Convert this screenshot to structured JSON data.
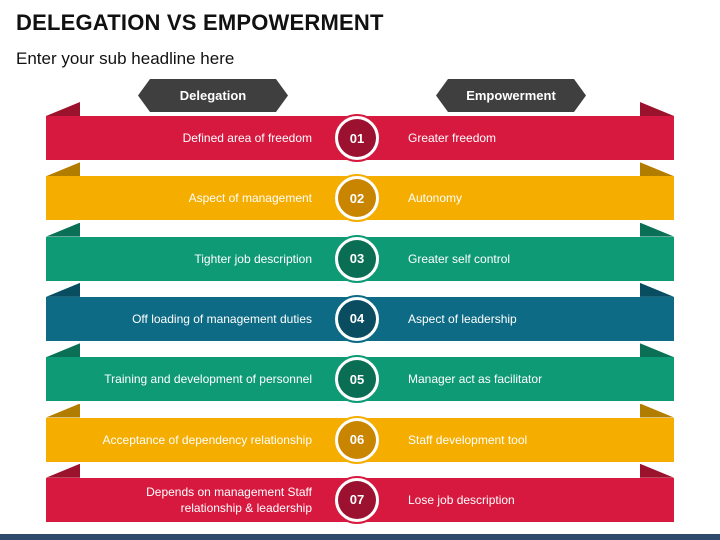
{
  "header": {
    "title": "DELEGATION VS EMPOWERMENT",
    "subtitle": "Enter your sub headline here"
  },
  "columns": {
    "left_label": "Delegation",
    "right_label": "Empowerment"
  },
  "rows": [
    {
      "number": "01",
      "delegation": "Defined area of freedom",
      "empowerment": "Greater freedom",
      "color": "#d7193f",
      "dark": "#9c1030"
    },
    {
      "number": "02",
      "delegation": "Aspect of management",
      "empowerment": "Autonomy",
      "color": "#f5ad00",
      "dark": "#c98400"
    },
    {
      "number": "03",
      "delegation": "Tighter job description",
      "empowerment": "Greater self control",
      "color": "#0f9a76",
      "dark": "#0a6e55"
    },
    {
      "number": "04",
      "delegation": "Off loading of management duties",
      "empowerment": "Aspect of leadership",
      "color": "#0d6b86",
      "dark": "#0a4c60"
    },
    {
      "number": "05",
      "delegation": "Training and development of personnel",
      "empowerment": "Manager act as facilitator",
      "color": "#0f9a76",
      "dark": "#0a6e55"
    },
    {
      "number": "06",
      "delegation": "Acceptance of dependency relationship",
      "empowerment": "Staff development tool",
      "color": "#f5ad00",
      "dark": "#c98400"
    },
    {
      "number": "07",
      "delegation": "Depends on management Staff relationship & leadership",
      "empowerment": "Lose job description",
      "color": "#d7193f",
      "dark": "#9c1030"
    }
  ]
}
